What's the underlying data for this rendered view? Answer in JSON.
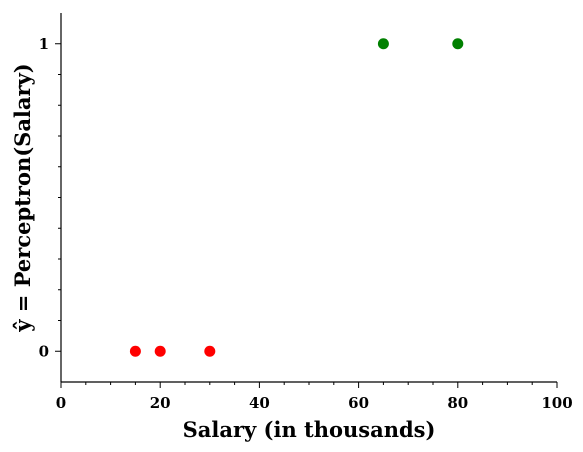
{
  "chart_data": {
    "type": "scatter",
    "xlabel": "Salary (in thousands)",
    "ylabel": "ŷ = Perceptron(Salary)",
    "xlim": [
      0,
      100
    ],
    "ylim": [
      -0.1,
      1.1
    ],
    "x_ticks": [
      0,
      20,
      40,
      60,
      80,
      100
    ],
    "x_tick_labels": [
      "0",
      "20",
      "40",
      "60",
      "80",
      "100"
    ],
    "y_ticks": [
      0,
      1
    ],
    "y_tick_labels": [
      "0",
      "1"
    ],
    "grid": false,
    "series": [
      {
        "color": "#ff0000",
        "points": [
          {
            "x": 15,
            "y": 0
          },
          {
            "x": 20,
            "y": 0
          },
          {
            "x": 30,
            "y": 0
          }
        ]
      },
      {
        "color": "#008000",
        "points": [
          {
            "x": 65,
            "y": 1
          },
          {
            "x": 80,
            "y": 1
          }
        ]
      }
    ]
  }
}
